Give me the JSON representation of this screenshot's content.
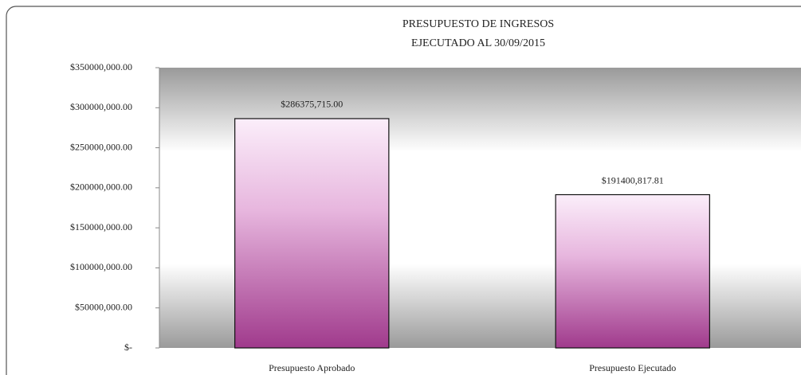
{
  "chart_data": {
    "type": "bar",
    "title": [
      "PRESUPUESTO DE INGRESOS",
      "EJECUTADO AL 30/09/2015"
    ],
    "categories": [
      "Presupuesto Aprobado",
      "Presupuesto Ejecutado"
    ],
    "values": [
      286375715.0,
      191400817.81
    ],
    "value_labels": [
      "$286375,715.00",
      "$191400,817.81"
    ],
    "color": "#b04a9a",
    "ylim": [
      0,
      350000000
    ],
    "yticks": [
      {
        "value": 0,
        "label": "$-"
      },
      {
        "value": 50000000,
        "label": "$50000,000.00"
      },
      {
        "value": 100000000,
        "label": "$100000,000.00"
      },
      {
        "value": 150000000,
        "label": "$150000,000.00"
      },
      {
        "value": 200000000,
        "label": "$200000,000.00"
      },
      {
        "value": 250000000,
        "label": "$250000,000.00"
      },
      {
        "value": 300000000,
        "label": "$300000,000.00"
      },
      {
        "value": 350000000,
        "label": "$350000,000.00"
      }
    ],
    "grid": false
  }
}
